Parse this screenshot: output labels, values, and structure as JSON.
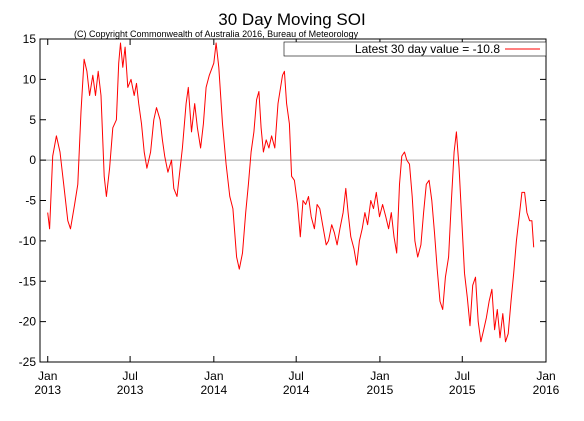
{
  "chart_data": {
    "type": "line",
    "title": "30 Day Moving SOI",
    "subtitle": "(C) Copyright Commonwealth of Australia 2016, Bureau of Meteorology",
    "xlabel": "",
    "ylabel": "",
    "ylim": [
      -25,
      15
    ],
    "yticks": [
      -25,
      -20,
      -15,
      -10,
      -5,
      0,
      5,
      10,
      15
    ],
    "xlim": [
      "2012-12-15",
      "2016-01-01"
    ],
    "xticks": [
      {
        "date": "2013-01-01",
        "month": "Jan",
        "year": "2013"
      },
      {
        "date": "2013-07-01",
        "month": "Jul",
        "year": "2013"
      },
      {
        "date": "2014-01-01",
        "month": "Jan",
        "year": "2014"
      },
      {
        "date": "2014-07-01",
        "month": "Jul",
        "year": "2014"
      },
      {
        "date": "2015-01-01",
        "month": "Jan",
        "year": "2015"
      },
      {
        "date": "2015-07-01",
        "month": "Jul",
        "year": "2015"
      },
      {
        "date": "2016-01-01",
        "month": "Jan",
        "year": "2016"
      }
    ],
    "zero_line": true,
    "grid": false,
    "legend": {
      "position": "top-right",
      "label": "Latest 30 day value = -10.8"
    },
    "series": [
      {
        "name": "Latest 30 day value = -10.8",
        "color": "#ff0000",
        "points": [
          [
            "2013-01-01",
            -6.5
          ],
          [
            "2013-01-05",
            -8.5
          ],
          [
            "2013-01-12",
            0.5
          ],
          [
            "2013-01-20",
            3.0
          ],
          [
            "2013-01-28",
            1.0
          ],
          [
            "2013-02-05",
            -3.0
          ],
          [
            "2013-02-14",
            -7.5
          ],
          [
            "2013-02-20",
            -8.5
          ],
          [
            "2013-03-01",
            -5.5
          ],
          [
            "2013-03-08",
            -3.0
          ],
          [
            "2013-03-15",
            6.0
          ],
          [
            "2013-03-22",
            12.5
          ],
          [
            "2013-03-28",
            11.0
          ],
          [
            "2013-04-03",
            8.0
          ],
          [
            "2013-04-10",
            10.5
          ],
          [
            "2013-04-16",
            8.0
          ],
          [
            "2013-04-22",
            11.0
          ],
          [
            "2013-04-28",
            8.0
          ],
          [
            "2013-05-05",
            -2.0
          ],
          [
            "2013-05-10",
            -4.5
          ],
          [
            "2013-05-17",
            -1.0
          ],
          [
            "2013-05-24",
            4.0
          ],
          [
            "2013-06-01",
            5.0
          ],
          [
            "2013-06-06",
            12.0
          ],
          [
            "2013-06-10",
            14.5
          ],
          [
            "2013-06-15",
            11.5
          ],
          [
            "2013-06-20",
            14.0
          ],
          [
            "2013-06-26",
            9.0
          ],
          [
            "2013-07-03",
            10.0
          ],
          [
            "2013-07-10",
            8.0
          ],
          [
            "2013-07-15",
            9.5
          ],
          [
            "2013-07-20",
            7.0
          ],
          [
            "2013-07-26",
            4.5
          ],
          [
            "2013-08-01",
            1.0
          ],
          [
            "2013-08-07",
            -1.0
          ],
          [
            "2013-08-15",
            1.0
          ],
          [
            "2013-08-22",
            5.0
          ],
          [
            "2013-08-28",
            6.5
          ],
          [
            "2013-09-05",
            5.0
          ],
          [
            "2013-09-10",
            2.5
          ],
          [
            "2013-09-15",
            0.5
          ],
          [
            "2013-09-22",
            -1.5
          ],
          [
            "2013-09-30",
            0.0
          ],
          [
            "2013-10-05",
            -3.5
          ],
          [
            "2013-10-12",
            -4.5
          ],
          [
            "2013-10-18",
            -1.5
          ],
          [
            "2013-10-24",
            1.5
          ],
          [
            "2013-11-01",
            7.0
          ],
          [
            "2013-11-06",
            9.0
          ],
          [
            "2013-11-13",
            3.5
          ],
          [
            "2013-11-20",
            7.0
          ],
          [
            "2013-11-26",
            4.0
          ],
          [
            "2013-12-03",
            1.5
          ],
          [
            "2013-12-09",
            4.5
          ],
          [
            "2013-12-15",
            9.0
          ],
          [
            "2013-12-22",
            10.5
          ],
          [
            "2014-01-01",
            12.0
          ],
          [
            "2014-01-06",
            14.5
          ],
          [
            "2014-01-12",
            11.5
          ],
          [
            "2014-01-20",
            4.5
          ],
          [
            "2014-01-28",
            -0.5
          ],
          [
            "2014-02-05",
            -4.5
          ],
          [
            "2014-02-12",
            -6.0
          ],
          [
            "2014-02-20",
            -12.0
          ],
          [
            "2014-02-26",
            -13.5
          ],
          [
            "2014-03-05",
            -11.5
          ],
          [
            "2014-03-12",
            -6.5
          ],
          [
            "2014-03-18",
            -3.0
          ],
          [
            "2014-03-24",
            1.0
          ],
          [
            "2014-03-30",
            3.5
          ],
          [
            "2014-04-05",
            7.5
          ],
          [
            "2014-04-10",
            8.5
          ],
          [
            "2014-04-15",
            4.0
          ],
          [
            "2014-04-20",
            1.0
          ],
          [
            "2014-04-26",
            2.5
          ],
          [
            "2014-05-02",
            1.5
          ],
          [
            "2014-05-08",
            3.0
          ],
          [
            "2014-05-15",
            1.5
          ],
          [
            "2014-05-22",
            7.0
          ],
          [
            "2014-06-01",
            10.5
          ],
          [
            "2014-06-05",
            11.0
          ],
          [
            "2014-06-10",
            7.0
          ],
          [
            "2014-06-16",
            4.5
          ],
          [
            "2014-06-21",
            -2.0
          ],
          [
            "2014-06-27",
            -2.5
          ],
          [
            "2014-07-04",
            -5.5
          ],
          [
            "2014-07-10",
            -9.5
          ],
          [
            "2014-07-16",
            -5.0
          ],
          [
            "2014-07-22",
            -5.5
          ],
          [
            "2014-07-28",
            -4.5
          ],
          [
            "2014-08-03",
            -7.0
          ],
          [
            "2014-08-10",
            -8.5
          ],
          [
            "2014-08-16",
            -5.5
          ],
          [
            "2014-08-22",
            -6.0
          ],
          [
            "2014-08-28",
            -8.0
          ],
          [
            "2014-09-05",
            -10.5
          ],
          [
            "2014-09-10",
            -10.0
          ],
          [
            "2014-09-17",
            -8.0
          ],
          [
            "2014-09-23",
            -9.0
          ],
          [
            "2014-09-29",
            -10.5
          ],
          [
            "2014-10-05",
            -8.5
          ],
          [
            "2014-10-12",
            -6.5
          ],
          [
            "2014-10-18",
            -3.5
          ],
          [
            "2014-10-23",
            -6.5
          ],
          [
            "2014-10-29",
            -9.5
          ],
          [
            "2014-11-05",
            -11.0
          ],
          [
            "2014-11-11",
            -13.0
          ],
          [
            "2014-11-17",
            -10.0
          ],
          [
            "2014-11-23",
            -8.5
          ],
          [
            "2014-11-29",
            -6.5
          ],
          [
            "2014-12-05",
            -8.0
          ],
          [
            "2014-12-12",
            -5.0
          ],
          [
            "2014-12-18",
            -6.0
          ],
          [
            "2014-12-24",
            -4.0
          ],
          [
            "2014-12-31",
            -7.0
          ],
          [
            "2015-01-07",
            -5.5
          ],
          [
            "2015-01-14",
            -7.0
          ],
          [
            "2015-01-20",
            -8.5
          ],
          [
            "2015-01-26",
            -6.5
          ],
          [
            "2015-02-01",
            -9.5
          ],
          [
            "2015-02-07",
            -11.5
          ],
          [
            "2015-02-13",
            -3.0
          ],
          [
            "2015-02-18",
            0.5
          ],
          [
            "2015-02-24",
            1.0
          ],
          [
            "2015-03-01",
            0.0
          ],
          [
            "2015-03-07",
            -0.5
          ],
          [
            "2015-03-13",
            -4.5
          ],
          [
            "2015-03-19",
            -10.0
          ],
          [
            "2015-03-25",
            -12.0
          ],
          [
            "2015-04-01",
            -10.5
          ],
          [
            "2015-04-07",
            -6.5
          ],
          [
            "2015-04-13",
            -3.0
          ],
          [
            "2015-04-19",
            -2.5
          ],
          [
            "2015-04-25",
            -5.0
          ],
          [
            "2015-05-01",
            -9.0
          ],
          [
            "2015-05-07",
            -13.5
          ],
          [
            "2015-05-13",
            -17.5
          ],
          [
            "2015-05-19",
            -18.5
          ],
          [
            "2015-05-25",
            -14.5
          ],
          [
            "2015-06-01",
            -12.0
          ],
          [
            "2015-06-07",
            -5.0
          ],
          [
            "2015-06-13",
            1.0
          ],
          [
            "2015-06-18",
            3.5
          ],
          [
            "2015-06-24",
            -1.0
          ],
          [
            "2015-06-30",
            -7.5
          ],
          [
            "2015-07-06",
            -14.0
          ],
          [
            "2015-07-12",
            -17.0
          ],
          [
            "2015-07-18",
            -20.5
          ],
          [
            "2015-07-24",
            -15.5
          ],
          [
            "2015-07-30",
            -14.5
          ],
          [
            "2015-08-05",
            -20.0
          ],
          [
            "2015-08-11",
            -22.5
          ],
          [
            "2015-08-17",
            -21.0
          ],
          [
            "2015-08-23",
            -19.5
          ],
          [
            "2015-08-29",
            -17.5
          ],
          [
            "2015-09-04",
            -16.0
          ],
          [
            "2015-09-10",
            -21.0
          ],
          [
            "2015-09-16",
            -18.5
          ],
          [
            "2015-09-22",
            -22.0
          ],
          [
            "2015-09-28",
            -19.0
          ],
          [
            "2015-10-04",
            -22.5
          ],
          [
            "2015-10-10",
            -21.5
          ],
          [
            "2015-10-16",
            -17.5
          ],
          [
            "2015-10-22",
            -14.0
          ],
          [
            "2015-10-28",
            -10.0
          ],
          [
            "2015-11-03",
            -7.0
          ],
          [
            "2015-11-09",
            -4.0
          ],
          [
            "2015-11-15",
            -4.0
          ],
          [
            "2015-11-20",
            -6.5
          ],
          [
            "2015-11-26",
            -7.5
          ],
          [
            "2015-12-01",
            -7.5
          ],
          [
            "2015-12-05",
            -10.8
          ]
        ]
      }
    ]
  }
}
